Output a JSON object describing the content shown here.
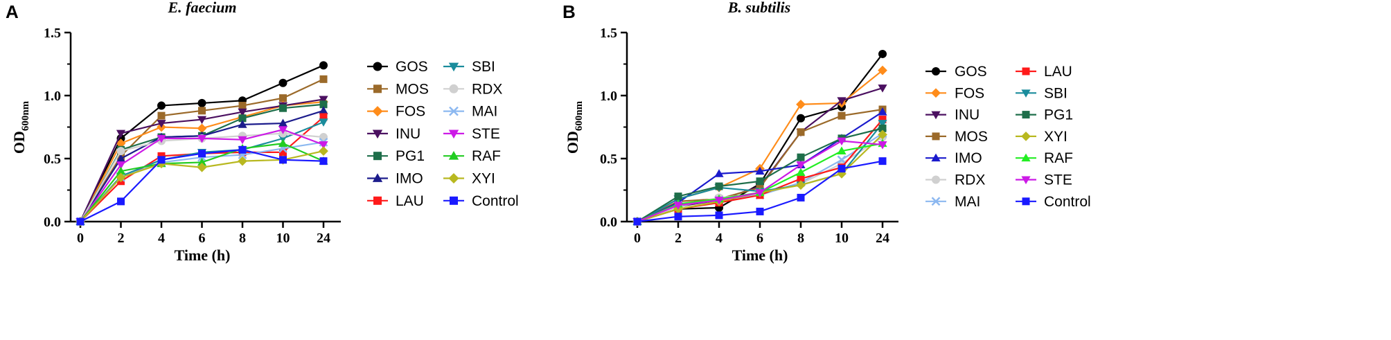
{
  "chart_data": [
    {
      "type": "line",
      "panel_label": "A",
      "title": "E. faecium",
      "xlabel": "Time (h)",
      "ylabel_main": "OD",
      "ylabel_sub": "600nm",
      "categories": [
        "0",
        "2",
        "4",
        "6",
        "8",
        "10",
        "24"
      ],
      "ylim": [
        0,
        1.5
      ],
      "yticks": [
        "0.0",
        "0.5",
        "1.0",
        "1.5"
      ],
      "grid": false,
      "legend_position": "right",
      "series": [
        {
          "name": "GOS",
          "color": "#000000",
          "marker": "circle",
          "values": [
            0,
            0.66,
            0.92,
            0.94,
            0.96,
            1.1,
            1.24
          ]
        },
        {
          "name": "MOS",
          "color": "#9b6a2a",
          "marker": "square",
          "values": [
            0,
            0.52,
            0.84,
            0.88,
            0.92,
            0.98,
            1.13
          ]
        },
        {
          "name": "FOS",
          "color": "#ff8c1a",
          "marker": "diamond",
          "values": [
            0,
            0.62,
            0.75,
            0.74,
            0.83,
            0.92,
            0.95
          ]
        },
        {
          "name": "INU",
          "color": "#4b1060",
          "marker": "triangle-down",
          "values": [
            0,
            0.7,
            0.78,
            0.81,
            0.87,
            0.92,
            0.97
          ]
        },
        {
          "name": "PG1",
          "color": "#1e6e4a",
          "marker": "square",
          "values": [
            0,
            0.57,
            0.67,
            0.68,
            0.82,
            0.9,
            0.93
          ]
        },
        {
          "name": "IMO",
          "color": "#1c1c8c",
          "marker": "triangle-up",
          "values": [
            0,
            0.5,
            0.67,
            0.68,
            0.77,
            0.78,
            0.88
          ]
        },
        {
          "name": "LAU",
          "color": "#ff1a1a",
          "marker": "square",
          "values": [
            0,
            0.32,
            0.52,
            0.54,
            0.55,
            0.55,
            0.83
          ]
        },
        {
          "name": "SBI",
          "color": "#1a8c9c",
          "marker": "triangle-down",
          "values": [
            0,
            0.36,
            0.49,
            0.55,
            0.57,
            0.66,
            0.79
          ]
        },
        {
          "name": "RDX",
          "color": "#d0d0d0",
          "marker": "circle",
          "values": [
            0,
            0.56,
            0.64,
            0.66,
            0.68,
            0.7,
            0.67
          ]
        },
        {
          "name": "MAI",
          "color": "#8cb8f0",
          "marker": "x",
          "values": [
            0,
            0.35,
            0.47,
            0.51,
            0.53,
            0.58,
            0.63
          ]
        },
        {
          "name": "STE",
          "color": "#cc1ae6",
          "marker": "triangle-down",
          "values": [
            0,
            0.45,
            0.66,
            0.66,
            0.65,
            0.73,
            0.61
          ]
        },
        {
          "name": "RAF",
          "color": "#22cc22",
          "marker": "triangle-up",
          "values": [
            0,
            0.4,
            0.46,
            0.47,
            0.58,
            0.62,
            0.48
          ]
        },
        {
          "name": "XYI",
          "color": "#b8b820",
          "marker": "diamond",
          "values": [
            0,
            0.35,
            0.46,
            0.43,
            0.48,
            0.49,
            0.56
          ]
        },
        {
          "name": "Control",
          "color": "#1a1aff",
          "marker": "square",
          "values": [
            0,
            0.16,
            0.49,
            0.54,
            0.57,
            0.49,
            0.48
          ]
        }
      ]
    },
    {
      "type": "line",
      "panel_label": "B",
      "title": "B. subtilis",
      "xlabel": "Time (h)",
      "ylabel_main": "OD",
      "ylabel_sub": "600nm",
      "categories": [
        "0",
        "2",
        "4",
        "6",
        "8",
        "10",
        "24"
      ],
      "ylim": [
        0,
        1.5
      ],
      "yticks": [
        "0.0",
        "0.5",
        "1.0",
        "1.5"
      ],
      "grid": false,
      "legend_position": "right",
      "series": [
        {
          "name": "GOS",
          "color": "#000000",
          "marker": "circle",
          "values": [
            0,
            0.1,
            0.11,
            0.3,
            0.82,
            0.91,
            1.33
          ]
        },
        {
          "name": "FOS",
          "color": "#ff8c1a",
          "marker": "diamond",
          "values": [
            0,
            0.18,
            0.27,
            0.42,
            0.93,
            0.94,
            1.2
          ]
        },
        {
          "name": "INU",
          "color": "#4b1060",
          "marker": "triangle-down",
          "values": [
            0,
            0.12,
            0.17,
            0.28,
            0.71,
            0.96,
            1.06
          ]
        },
        {
          "name": "MOS",
          "color": "#9b6a2a",
          "marker": "square",
          "values": [
            0,
            0.16,
            0.18,
            0.27,
            0.71,
            0.84,
            0.89
          ]
        },
        {
          "name": "IMO",
          "color": "#1a1acc",
          "marker": "triangle-up",
          "values": [
            0,
            0.15,
            0.38,
            0.4,
            0.45,
            0.66,
            0.87
          ]
        },
        {
          "name": "RDX",
          "color": "#d0d0d0",
          "marker": "circle",
          "values": [
            0,
            0.12,
            0.19,
            0.22,
            0.3,
            0.46,
            0.67
          ]
        },
        {
          "name": "MAI",
          "color": "#8cb8f0",
          "marker": "x",
          "values": [
            0,
            0.13,
            0.17,
            0.21,
            0.31,
            0.49,
            0.7
          ]
        },
        {
          "name": "LAU",
          "color": "#ff1a1a",
          "marker": "square",
          "values": [
            0,
            0.1,
            0.15,
            0.21,
            0.34,
            0.43,
            0.81
          ]
        },
        {
          "name": "SBI",
          "color": "#1a8c9c",
          "marker": "triangle-down",
          "values": [
            0,
            0.18,
            0.27,
            0.24,
            0.29,
            0.38,
            0.78
          ]
        },
        {
          "name": "PG1",
          "color": "#1e6e4a",
          "marker": "square",
          "values": [
            0,
            0.2,
            0.28,
            0.32,
            0.51,
            0.66,
            0.74
          ]
        },
        {
          "name": "XYI",
          "color": "#b8b820",
          "marker": "diamond",
          "values": [
            0,
            0.1,
            0.16,
            0.23,
            0.29,
            0.38,
            0.69
          ]
        },
        {
          "name": "RAF",
          "color": "#22ee22",
          "marker": "triangle-up",
          "values": [
            0,
            0.14,
            0.18,
            0.23,
            0.39,
            0.56,
            0.62
          ]
        },
        {
          "name": "STE",
          "color": "#cc1ae6",
          "marker": "triangle-down",
          "values": [
            0,
            0.13,
            0.17,
            0.23,
            0.45,
            0.64,
            0.61
          ]
        },
        {
          "name": "Control",
          "color": "#1a1aff",
          "marker": "square",
          "values": [
            0,
            0.04,
            0.05,
            0.08,
            0.19,
            0.42,
            0.48
          ]
        }
      ]
    }
  ]
}
